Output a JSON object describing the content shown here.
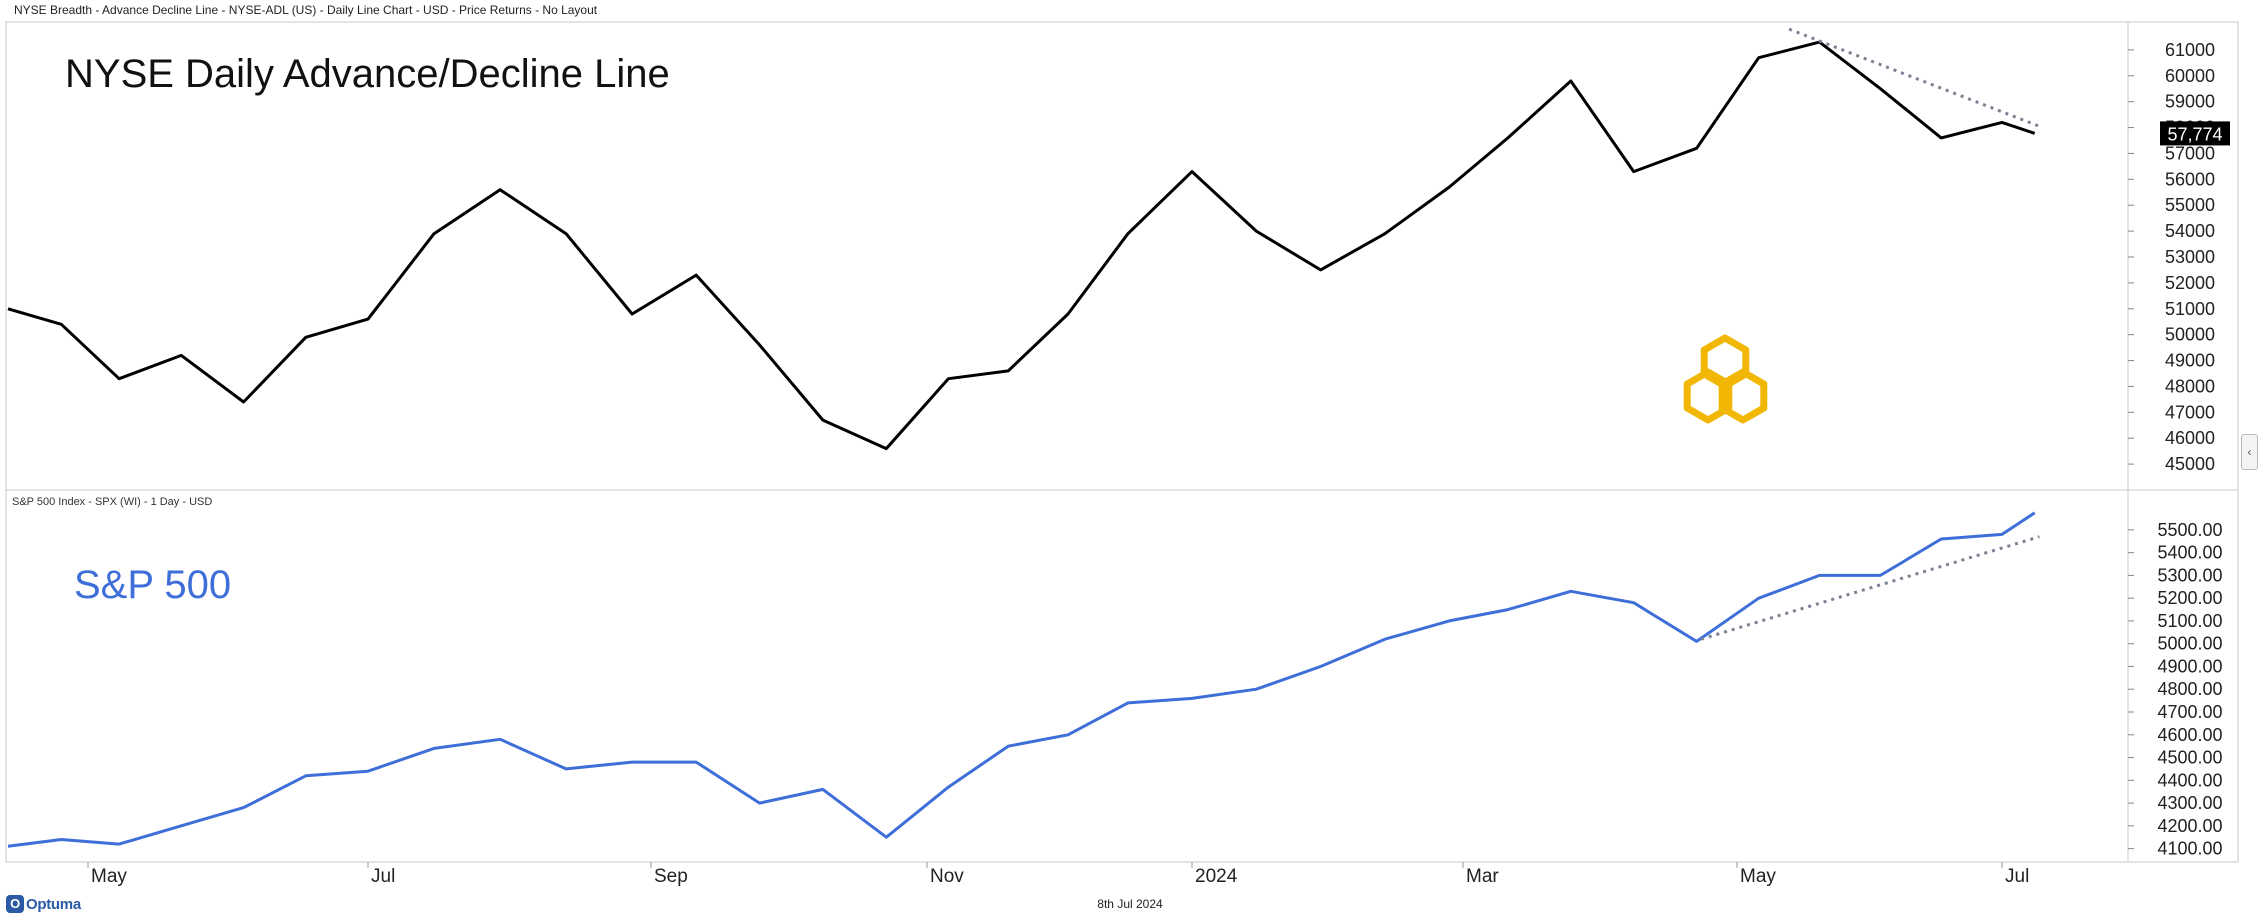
{
  "header": {
    "text": "NYSE Breadth - Advance Decline Line - NYSE-ADL (US) - Daily Line Chart - USD - Price Returns - No Layout"
  },
  "footer": {
    "date": "8th Jul 2024",
    "brand": "Optuma"
  },
  "colors": {
    "adl_line": "#000000",
    "spx_line": "#3e6fd8",
    "trendline": "#7a8291",
    "logo": "#f2b705",
    "last_value_bg": "#000000"
  },
  "icons": {
    "logo": "chain-hexagon-logo-icon",
    "scroll": "chevron-left-icon",
    "brand": "optuma-logo-icon"
  },
  "time_axis": {
    "labels": [
      "May",
      "Jul",
      "Sep",
      "Nov",
      "2024",
      "Mar",
      "May",
      "Jul"
    ],
    "label_dates": [
      "2023-05-01",
      "2023-07-03",
      "2023-09-01",
      "2023-11-01",
      "2024-01-02",
      "2024-03-01",
      "2024-05-01",
      "2024-07-01"
    ]
  },
  "chart_data": [
    {
      "type": "line",
      "title": "NYSE Daily Advance/Decline Line",
      "last_value_label": "57,774",
      "ylim": [
        44000,
        62000
      ],
      "yticks": [
        "45000",
        "46000",
        "47000",
        "48000",
        "49000",
        "50000",
        "51000",
        "52000",
        "53000",
        "54000",
        "55000",
        "56000",
        "57000",
        "58000",
        "59000",
        "60000",
        "61000"
      ],
      "x": [
        "2023-04-10",
        "2023-04-24",
        "2023-05-08",
        "2023-05-22",
        "2023-06-05",
        "2023-06-19",
        "2023-07-03",
        "2023-07-17",
        "2023-07-31",
        "2023-08-14",
        "2023-08-28",
        "2023-09-11",
        "2023-09-25",
        "2023-10-09",
        "2023-10-23",
        "2023-11-06",
        "2023-11-20",
        "2023-12-04",
        "2023-12-18",
        "2024-01-02",
        "2024-01-16",
        "2024-01-30",
        "2024-02-13",
        "2024-02-27",
        "2024-03-11",
        "2024-03-25",
        "2024-04-08",
        "2024-04-22",
        "2024-05-06",
        "2024-05-20",
        "2024-06-03",
        "2024-06-17",
        "2024-07-01",
        "2024-07-08"
      ],
      "series": [
        {
          "values": [
            51000,
            50400,
            48300,
            49200,
            47400,
            49900,
            50600,
            53900,
            55600,
            53900,
            50800,
            52300,
            49600,
            46700,
            45600,
            48300,
            48600,
            50800,
            53900,
            56300,
            54000,
            52500,
            53900,
            55700,
            57600,
            59800,
            56300,
            57200,
            60700,
            61300,
            59500,
            57600,
            58200,
            57774
          ]
        }
      ],
      "trendline": {
        "from": [
          "2024-05-13",
          61800
        ],
        "to": [
          "2024-07-09",
          58050
        ],
        "style": "dotted"
      }
    },
    {
      "type": "line",
      "title": "S&P 500",
      "panel_header": "S&P 500 Index - SPX (WI) - 1 Day - USD",
      "ylim": [
        4050,
        5640
      ],
      "yticks": [
        "4100.00",
        "4200.00",
        "4300.00",
        "4400.00",
        "4500.00",
        "4600.00",
        "4700.00",
        "4800.00",
        "4900.00",
        "5000.00",
        "5100.00",
        "5200.00",
        "5300.00",
        "5400.00",
        "5500.00"
      ],
      "x": [
        "2023-04-10",
        "2023-04-24",
        "2023-05-08",
        "2023-05-22",
        "2023-06-05",
        "2023-06-19",
        "2023-07-03",
        "2023-07-17",
        "2023-07-31",
        "2023-08-14",
        "2023-08-28",
        "2023-09-11",
        "2023-09-25",
        "2023-10-09",
        "2023-10-23",
        "2023-11-06",
        "2023-11-20",
        "2023-12-04",
        "2023-12-18",
        "2024-01-02",
        "2024-01-16",
        "2024-01-30",
        "2024-02-13",
        "2024-02-27",
        "2024-03-11",
        "2024-03-25",
        "2024-04-08",
        "2024-04-22",
        "2024-05-06",
        "2024-05-20",
        "2024-06-03",
        "2024-06-17",
        "2024-07-01",
        "2024-07-08"
      ],
      "series": [
        {
          "values": [
            4110,
            4140,
            4120,
            4200,
            4280,
            4420,
            4440,
            4540,
            4580,
            4450,
            4480,
            4480,
            4300,
            4360,
            4150,
            4370,
            4550,
            4600,
            4740,
            4760,
            4800,
            4900,
            5020,
            5100,
            5150,
            5230,
            5180,
            5010,
            5200,
            5300,
            5300,
            5460,
            5480,
            5575
          ]
        }
      ],
      "trendline": {
        "from": [
          "2024-04-23",
          5020
        ],
        "to": [
          "2024-07-09",
          5470
        ],
        "style": "dotted"
      }
    }
  ]
}
